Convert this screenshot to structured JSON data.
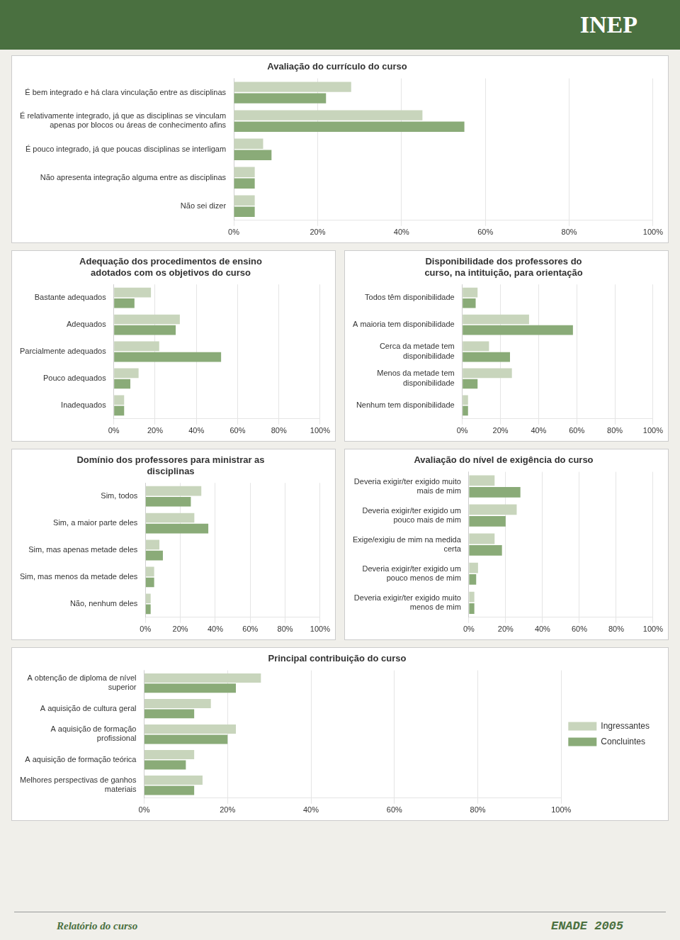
{
  "annotations": [
    "INEP",
    "Relatório do curso",
    "ENADE 2005"
  ],
  "chart_data": [
    {
      "type": "bar",
      "orientation": "horizontal",
      "title": "Avaliação do currículo do curso",
      "categories": [
        "É bem integrado e há clara vinculação entre as disciplinas",
        "É relativamente integrado, já que as disciplinas se vinculam\napenas por blocos ou áreas de conhecimento afins",
        "É pouco integrado, já que poucas disciplinas se interligam",
        "Não apresenta integração alguma entre as disciplinas",
        "Não sei dizer"
      ],
      "series": [
        {
          "name": "Ingressantes",
          "color": "#c8d5bc",
          "values": [
            28,
            45,
            7,
            5,
            5
          ]
        },
        {
          "name": "Concluintes",
          "color": "#8aab78",
          "values": [
            22,
            55,
            9,
            5,
            5
          ]
        }
      ],
      "xlim": [
        0,
        100
      ],
      "xticks": [
        {
          "value": 0,
          "label": "0%"
        },
        {
          "value": 20,
          "label": "20%"
        },
        {
          "value": 40,
          "label": "40%"
        },
        {
          "value": 60,
          "label": "60%"
        },
        {
          "value": 80,
          "label": "80%"
        },
        {
          "value": 100,
          "label": "100%"
        }
      ],
      "grid": true
    },
    {
      "type": "bar",
      "orientation": "horizontal",
      "title": "Adequação dos procedimentos de ensino\nadotados com os objetivos do curso",
      "categories": [
        "Bastante adequados",
        "Adequados",
        "Parcialmente adequados",
        "Pouco adequados",
        "Inadequados"
      ],
      "series": [
        {
          "name": "Ingressantes",
          "color": "#c8d5bc",
          "values": [
            18,
            32,
            22,
            12,
            5
          ]
        },
        {
          "name": "Concluintes",
          "color": "#8aab78",
          "values": [
            10,
            30,
            52,
            8,
            5
          ]
        }
      ],
      "xlim": [
        0,
        100
      ],
      "xticks": [
        {
          "value": 0,
          "label": "0%"
        },
        {
          "value": 20,
          "label": "20%"
        },
        {
          "value": 40,
          "label": "40%"
        },
        {
          "value": 60,
          "label": "60%"
        },
        {
          "value": 80,
          "label": "80%"
        },
        {
          "value": 100,
          "label": "100%"
        }
      ],
      "grid": true
    },
    {
      "type": "bar",
      "orientation": "horizontal",
      "title": "Disponibilidade dos professores do\ncurso, na intituição, para orientação",
      "categories": [
        "Todos têm disponibilidade",
        "A maioria tem disponibilidade",
        "Cerca da metade tem\ndisponibilidade",
        "Menos da metade tem\ndisponibilidade",
        "Nenhum tem disponibilidade"
      ],
      "series": [
        {
          "name": "Ingressantes",
          "color": "#c8d5bc",
          "values": [
            8,
            35,
            14,
            26,
            3
          ]
        },
        {
          "name": "Concluintes",
          "color": "#8aab78",
          "values": [
            7,
            58,
            25,
            8,
            3
          ]
        }
      ],
      "xlim": [
        0,
        100
      ],
      "xticks": [
        {
          "value": 0,
          "label": "0%"
        },
        {
          "value": 20,
          "label": "20%"
        },
        {
          "value": 40,
          "label": "40%"
        },
        {
          "value": 60,
          "label": "60%"
        },
        {
          "value": 80,
          "label": "80%"
        },
        {
          "value": 100,
          "label": "100%"
        }
      ],
      "grid": true
    },
    {
      "type": "bar",
      "orientation": "horizontal",
      "title": "Domínio dos professores para ministrar as\ndisciplinas",
      "categories": [
        "Sim, todos",
        "Sim, a maior parte deles",
        "Sim, mas apenas metade deles",
        "Sim, mas menos da metade deles",
        "Não, nenhum deles"
      ],
      "series": [
        {
          "name": "Ingressantes",
          "color": "#c8d5bc",
          "values": [
            32,
            28,
            8,
            5,
            3
          ]
        },
        {
          "name": "Concluintes",
          "color": "#8aab78",
          "values": [
            26,
            36,
            10,
            5,
            3
          ]
        }
      ],
      "xlim": [
        0,
        100
      ],
      "xticks": [
        {
          "value": 0,
          "label": "0%"
        },
        {
          "value": 20,
          "label": "20%"
        },
        {
          "value": 40,
          "label": "40%"
        },
        {
          "value": 60,
          "label": "60%"
        },
        {
          "value": 80,
          "label": "80%"
        },
        {
          "value": 100,
          "label": "100%"
        }
      ],
      "grid": true
    },
    {
      "type": "bar",
      "orientation": "horizontal",
      "title": "Avaliação do nível de exigência do curso",
      "categories": [
        "Deveria exigir/ter exigido muito\nmais de mim",
        "Deveria exigir/ter exigido um\npouco mais de mim",
        "Exige/exigiu de mim na medida\ncerta",
        "Deveria exigir/ter exigido um\npouco menos de mim",
        "Deveria exigir/ter exigido muito\nmenos de mim"
      ],
      "series": [
        {
          "name": "Ingressantes",
          "color": "#c8d5bc",
          "values": [
            14,
            26,
            14,
            5,
            3
          ]
        },
        {
          "name": "Concluintes",
          "color": "#8aab78",
          "values": [
            28,
            20,
            18,
            4,
            3
          ]
        }
      ],
      "xlim": [
        0,
        100
      ],
      "xticks": [
        {
          "value": 0,
          "label": "0%"
        },
        {
          "value": 20,
          "label": "20%"
        },
        {
          "value": 40,
          "label": "40%"
        },
        {
          "value": 60,
          "label": "60%"
        },
        {
          "value": 80,
          "label": "80%"
        },
        {
          "value": 100,
          "label": "100%"
        }
      ],
      "grid": true
    },
    {
      "type": "bar",
      "orientation": "horizontal",
      "title": "Principal contribuição do curso",
      "categories": [
        "A obtenção de diploma de nível\nsuperior",
        "A aquisição de cultura geral",
        "A aquisição de formação\nprofissional",
        "A aquisição de formação teórica",
        "Melhores perspectivas de ganhos\nmateriais"
      ],
      "series": [
        {
          "name": "Ingressantes",
          "color": "#c8d5bc",
          "values": [
            28,
            16,
            22,
            12,
            14
          ]
        },
        {
          "name": "Concluintes",
          "color": "#8aab78",
          "values": [
            22,
            12,
            20,
            10,
            12
          ]
        }
      ],
      "xlim": [
        0,
        100
      ],
      "xticks": [
        {
          "value": 0,
          "label": "0%"
        },
        {
          "value": 20,
          "label": "20%"
        },
        {
          "value": 40,
          "label": "40%"
        },
        {
          "value": 60,
          "label": "60%"
        },
        {
          "value": 80,
          "label": "80%"
        },
        {
          "value": 100,
          "label": "100%"
        }
      ],
      "grid": true,
      "legend": "right"
    }
  ]
}
